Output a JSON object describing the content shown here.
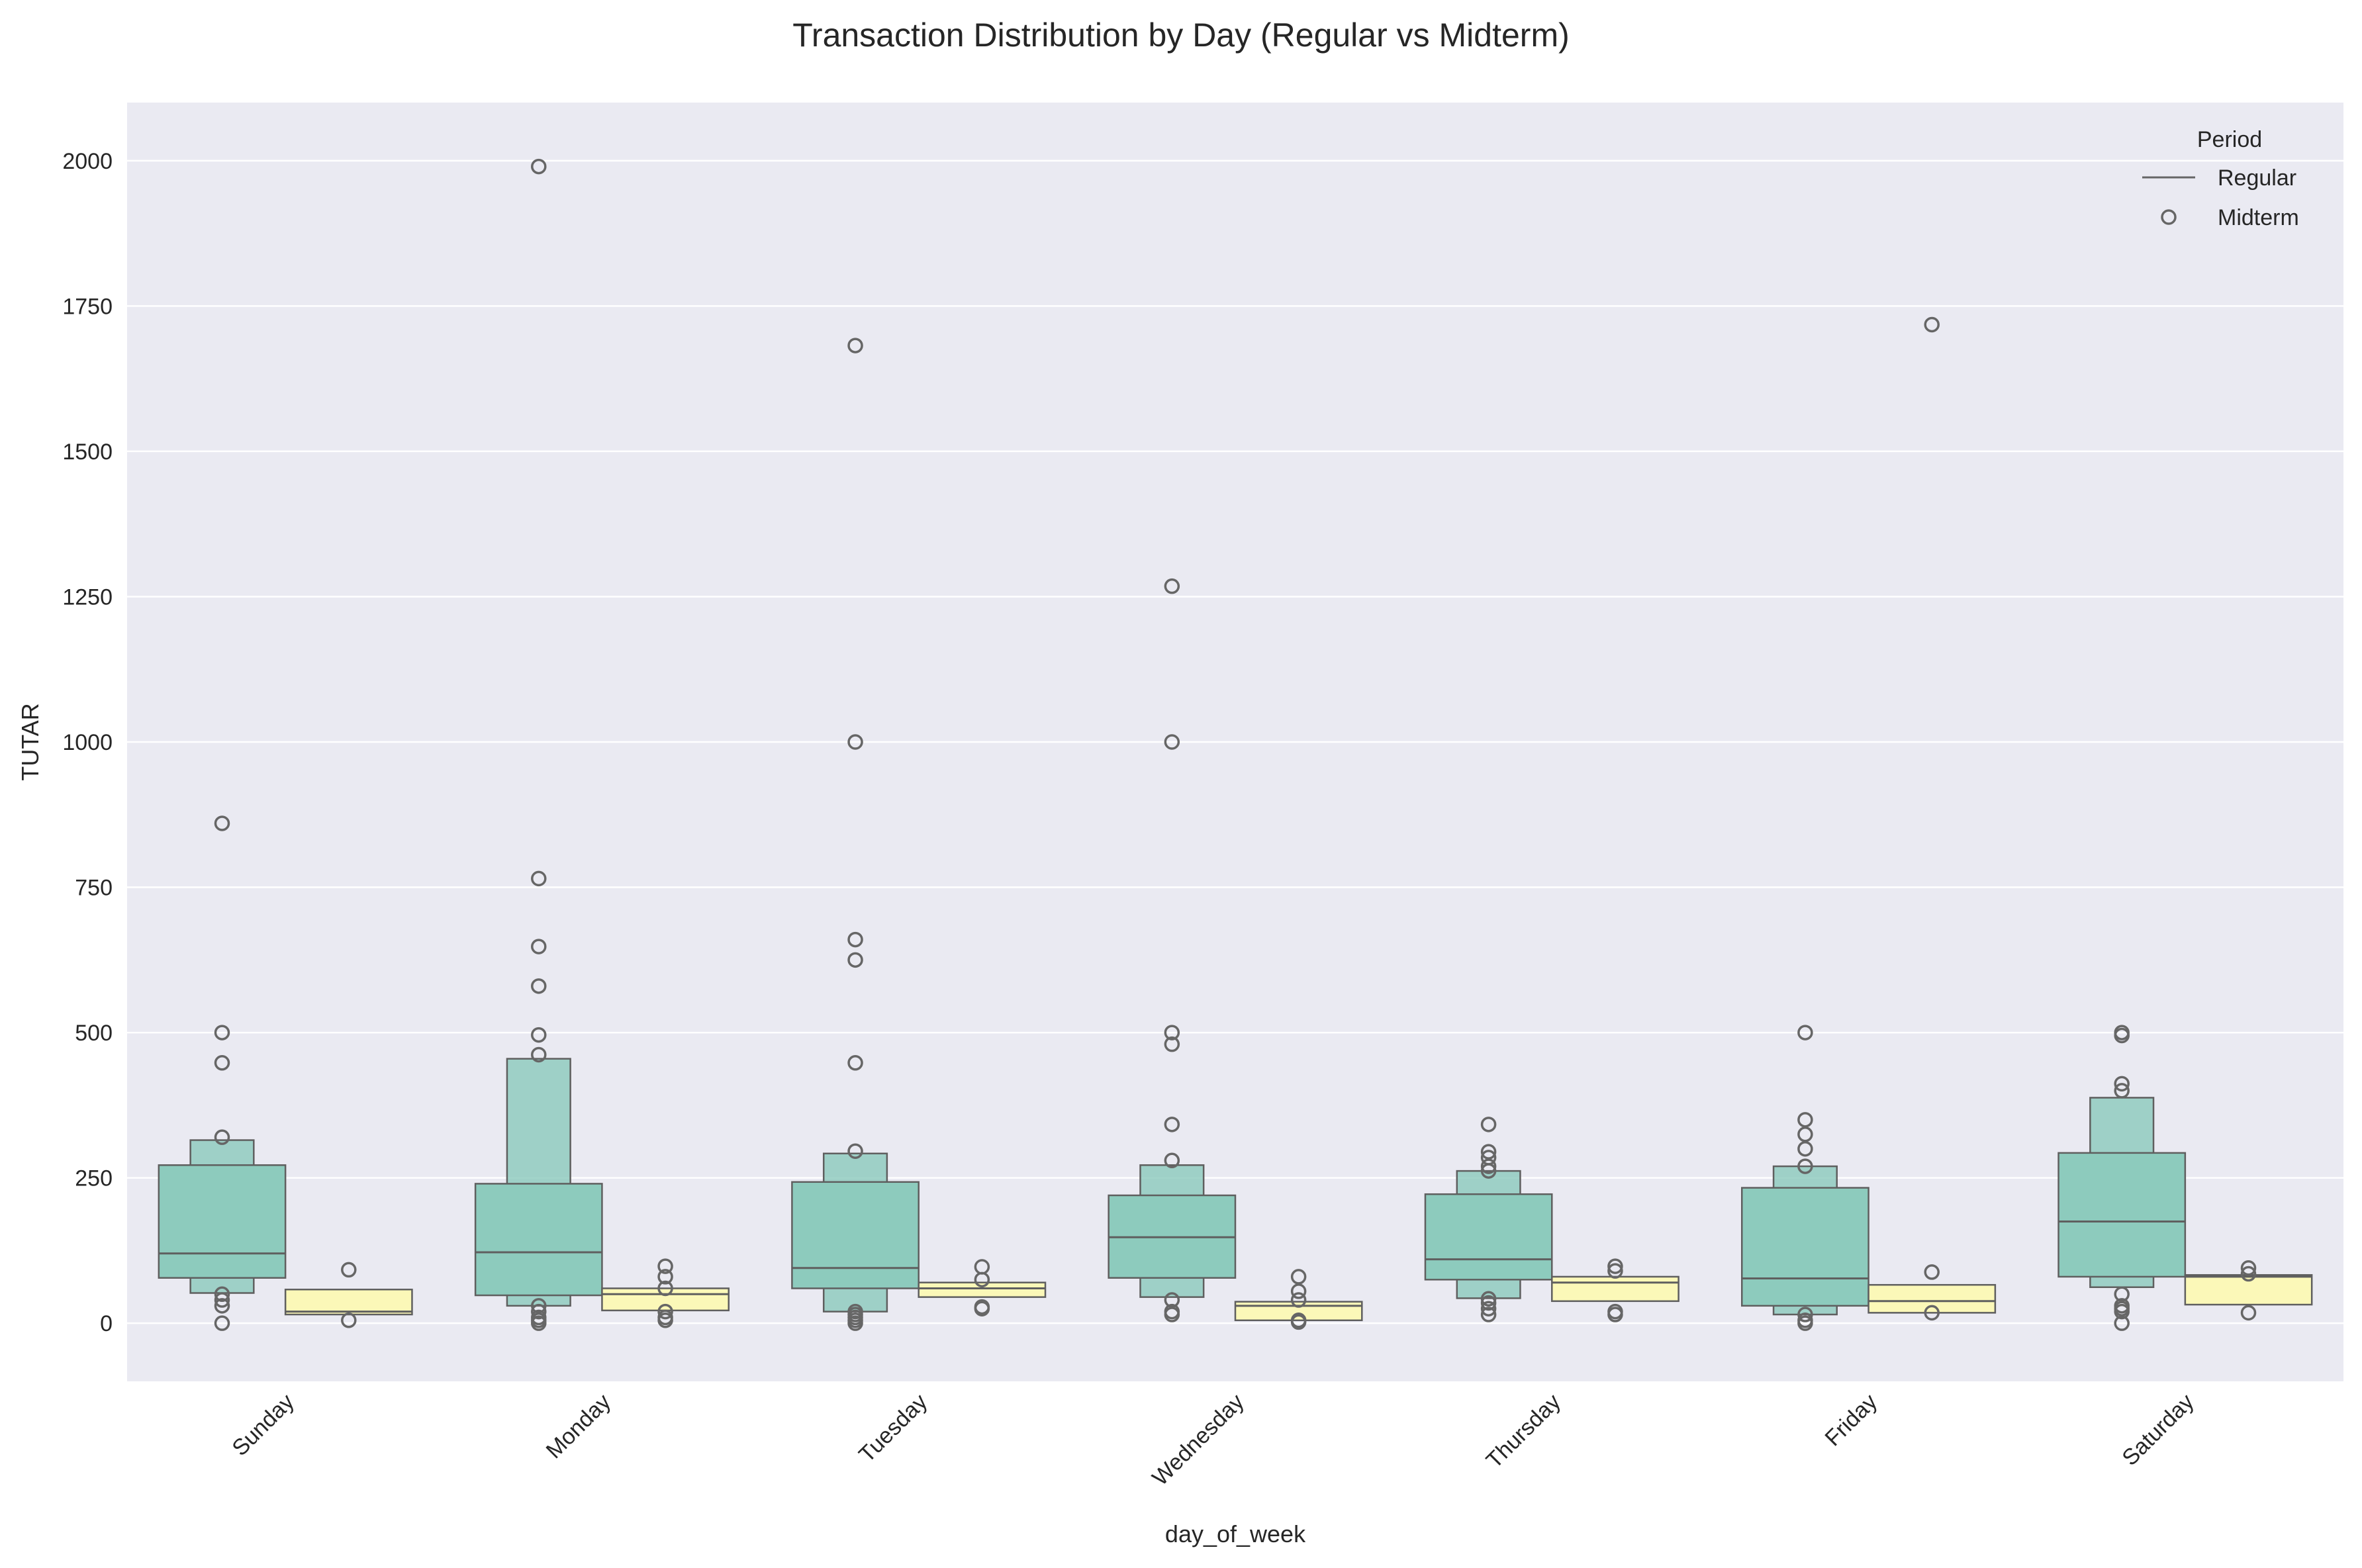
{
  "chart_data": {
    "type": "boxen",
    "title": "Transaction Distribution by Day (Regular vs Midterm)",
    "xlabel": "day_of_week",
    "ylabel": "TUTAR",
    "ylim": [
      -100,
      2100
    ],
    "yticks": [
      0,
      250,
      500,
      750,
      1000,
      1250,
      1500,
      1750,
      2000
    ],
    "grid": true,
    "legend": {
      "title": "Period",
      "position": "top-right",
      "entries": [
        "Regular",
        "Midterm"
      ]
    },
    "categories": [
      "Sunday",
      "Monday",
      "Tuesday",
      "Wednesday",
      "Thursday",
      "Friday",
      "Saturday"
    ],
    "series": [
      {
        "name": "Regular",
        "color": "#8dcbbd",
        "boxes": [
          {
            "median": 120,
            "levels": [
              [
                78,
                272
              ],
              [
                52,
                315
              ]
            ],
            "outliers": [
              860,
              500,
              448,
              320,
              50,
              40,
              30,
              0
            ]
          },
          {
            "median": 122,
            "levels": [
              [
                48,
                240
              ],
              [
                30,
                455
              ]
            ],
            "outliers": [
              1990,
              765,
              648,
              580,
              496,
              462,
              30,
              20,
              10,
              5,
              0
            ]
          },
          {
            "median": 95,
            "levels": [
              [
                60,
                243
              ],
              [
                20,
                292
              ]
            ],
            "outliers": [
              1682,
              1000,
              660,
              625,
              448,
              296,
              20,
              15,
              10,
              5,
              0
            ]
          },
          {
            "median": 148,
            "levels": [
              [
                78,
                220
              ],
              [
                45,
                272
              ]
            ],
            "outliers": [
              1268,
              1000,
              500,
              480,
              342,
              280,
              40,
              20,
              15
            ]
          },
          {
            "median": 110,
            "levels": [
              [
                75,
                222
              ],
              [
                43,
                262
              ]
            ],
            "outliers": [
              342,
              295,
              285,
              270,
              262,
              42,
              35,
              25,
              15
            ]
          },
          {
            "median": 77,
            "levels": [
              [
                30,
                233
              ],
              [
                15,
                270
              ]
            ],
            "outliers": [
              500,
              350,
              325,
              300,
              270,
              15,
              5,
              0
            ]
          },
          {
            "median": 175,
            "levels": [
              [
                80,
                293
              ],
              [
                62,
                388
              ]
            ],
            "outliers": [
              500,
              495,
              412,
              400,
              50,
              30,
              25,
              20,
              0
            ]
          }
        ]
      },
      {
        "name": "Midterm",
        "color": "#fbf8b8",
        "boxes": [
          {
            "median": 20,
            "levels": [
              [
                15,
                58
              ]
            ],
            "outliers": [
              92,
              5
            ]
          },
          {
            "median": 50,
            "levels": [
              [
                22,
                60
              ]
            ],
            "outliers": [
              98,
              80,
              60,
              20,
              10,
              5
            ]
          },
          {
            "median": 60,
            "levels": [
              [
                45,
                70
              ]
            ],
            "outliers": [
              97,
              75,
              28,
              25
            ]
          },
          {
            "median": 30,
            "levels": [
              [
                5,
                37
              ]
            ],
            "outliers": [
              80,
              55,
              40,
              5,
              2
            ]
          },
          {
            "median": 70,
            "levels": [
              [
                38,
                80
              ]
            ],
            "outliers": [
              98,
              90,
              20,
              15
            ]
          },
          {
            "median": 38,
            "levels": [
              [
                18,
                66
              ]
            ],
            "outliers": [
              1718,
              88,
              18
            ]
          },
          {
            "median": 80,
            "levels": [
              [
                32,
                83
              ]
            ],
            "outliers": [
              95,
              85,
              18
            ]
          }
        ]
      }
    ]
  }
}
